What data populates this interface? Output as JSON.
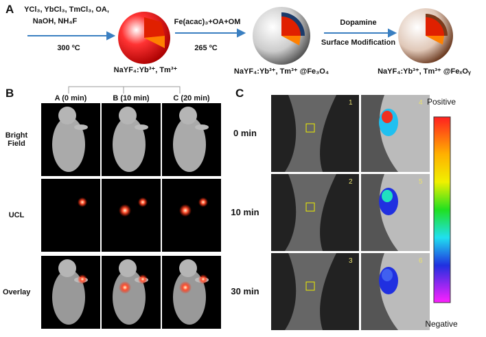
{
  "panel_a": {
    "label": "A",
    "step1": {
      "reagents": [
        "YCl₃, YbCl₃, TmCl₃, OA,",
        "NaOH, NH₄F"
      ],
      "condition": "300 ºC",
      "product": "NaYF₄:Yb³⁺, Tm³⁺"
    },
    "step2": {
      "reagents": "Fe(acac)₃+OA+OM",
      "condition": "265 ºC",
      "product": "NaYF₄:Yb³⁺, Tm³⁺ @Fe₃O₄"
    },
    "step3": {
      "reagents": "Dopamine",
      "condition": "Surface Modification",
      "product": "NaYF₄:Yb³⁺, Tm³⁺ @FeₓOᵧ"
    }
  },
  "panel_b": {
    "label": "B",
    "columns": [
      "A (0 min)",
      "B (10 min)",
      "C (20 min)"
    ],
    "rows": [
      "Bright Field",
      "UCL",
      "Overlay"
    ]
  },
  "panel_c": {
    "label": "C",
    "rows": [
      "0 min",
      "10 min",
      "30 min"
    ],
    "image_numbers": [
      "1",
      "4",
      "2",
      "5",
      "3",
      "6"
    ],
    "scale_top": "Positive",
    "scale_bottom": "Negative"
  }
}
